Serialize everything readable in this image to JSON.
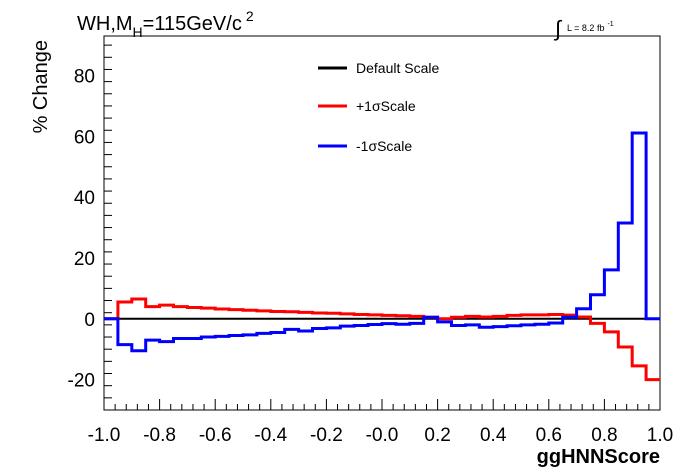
{
  "chart_data": {
    "type": "line",
    "style": "step-histogram",
    "title": "WH,M",
    "title_sub": "H",
    "title_rest": "=115GeV/c",
    "title_sup": "2",
    "lumi_integral": "∫",
    "lumi_text": "L = 8.2 fb",
    "lumi_sup": "-1",
    "xlabel": "ggHNNScore",
    "ylabel": "% Change",
    "xlim": [
      -1.0,
      1.0
    ],
    "ylim": [
      -30,
      93
    ],
    "xticks": [
      "-1.0",
      "-0.8",
      "-0.6",
      "-0.4",
      "-0.2",
      "-0.0",
      "0.2",
      "0.4",
      "0.6",
      "0.8",
      "1.0"
    ],
    "xtick_values": [
      -1.0,
      -0.8,
      -0.6,
      -0.4,
      -0.2,
      0.0,
      0.2,
      0.4,
      0.6,
      0.8,
      1.0
    ],
    "yticks": [
      "-20",
      "0",
      "20",
      "40",
      "60",
      "80"
    ],
    "ytick_values": [
      -20,
      0,
      20,
      40,
      60,
      80
    ],
    "grid": false,
    "legend_position": "top-center",
    "bin_edges": [
      -1.0,
      -0.95,
      -0.9,
      -0.85,
      -0.8,
      -0.75,
      -0.7,
      -0.65,
      -0.6,
      -0.55,
      -0.5,
      -0.45,
      -0.4,
      -0.35,
      -0.3,
      -0.25,
      -0.2,
      -0.15,
      -0.1,
      -0.05,
      0.0,
      0.05,
      0.1,
      0.15,
      0.2,
      0.25,
      0.3,
      0.35,
      0.4,
      0.45,
      0.5,
      0.55,
      0.6,
      0.65,
      0.7,
      0.75,
      0.8,
      0.85,
      0.9,
      0.95,
      1.0
    ],
    "series": [
      {
        "name": "Default Scale",
        "color": "#000000",
        "values": [
          0,
          0,
          0,
          0,
          0,
          0,
          0,
          0,
          0,
          0,
          0,
          0,
          0,
          0,
          0,
          0,
          0,
          0,
          0,
          0,
          0,
          0,
          0,
          0,
          0,
          0,
          0,
          0,
          0,
          0,
          0,
          0,
          0,
          0,
          0,
          0,
          0,
          0,
          0,
          0
        ]
      },
      {
        "name": "+1σScale",
        "color": "#ff0000",
        "values": [
          0,
          5.5,
          6.5,
          4,
          4.5,
          4,
          3.7,
          3.5,
          3.2,
          3.0,
          2.8,
          2.6,
          2.4,
          2.3,
          2.1,
          1.9,
          1.8,
          1.6,
          1.4,
          1.3,
          1.1,
          1.0,
          0.8,
          0.5,
          0,
          0.5,
          0.8,
          0.6,
          0.8,
          1.1,
          1.3,
          1.3,
          1.4,
          1.2,
          0.6,
          -1.5,
          -4.3,
          -9.3,
          -15.5,
          -20.0
        ]
      },
      {
        "name": "-1σScale",
        "color": "#0000ff",
        "values": [
          0,
          -8.5,
          -10.5,
          -7,
          -7.5,
          -6.5,
          -6.5,
          -6.0,
          -5.8,
          -5.5,
          -5.3,
          -4.8,
          -4.5,
          -3.5,
          -4.0,
          -3.2,
          -3.0,
          -2.4,
          -2.2,
          -1.9,
          -1.6,
          -1.8,
          -1.5,
          0.5,
          -1.0,
          -2.2,
          -2.0,
          -2.8,
          -2.6,
          -2.3,
          -2.0,
          -1.8,
          -1.4,
          0.5,
          3.3,
          7.9,
          16.1,
          31.5,
          61.1,
          0
        ]
      }
    ]
  }
}
